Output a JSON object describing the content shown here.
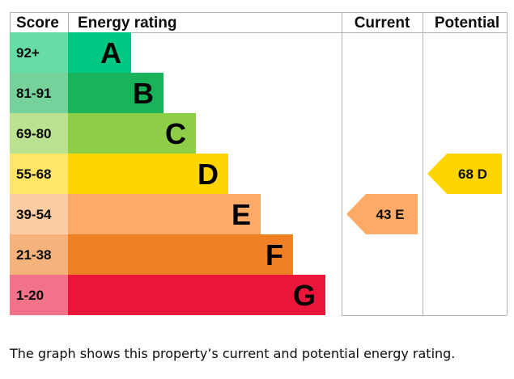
{
  "chart_data": {
    "type": "bar",
    "headers": {
      "score": "Score",
      "rating": "Energy rating",
      "current": "Current",
      "potential": "Potential"
    },
    "bands": [
      {
        "range": "92+",
        "letter": "A",
        "min": 92,
        "max": 100,
        "color": "#00c781",
        "score_bg": "#66dda7"
      },
      {
        "range": "81-91",
        "letter": "B",
        "min": 81,
        "max": 91,
        "color": "#19b459",
        "score_bg": "#75d29b"
      },
      {
        "range": "69-80",
        "letter": "C",
        "min": 69,
        "max": 80,
        "color": "#8dce46",
        "score_bg": "#bbe290"
      },
      {
        "range": "55-68",
        "letter": "D",
        "min": 55,
        "max": 68,
        "color": "#ffd500",
        "score_bg": "#ffe666"
      },
      {
        "range": "39-54",
        "letter": "E",
        "min": 39,
        "max": 54,
        "color": "#fcaa65",
        "score_bg": "#fdcca3"
      },
      {
        "range": "21-38",
        "letter": "F",
        "min": 21,
        "max": 38,
        "color": "#ef8023",
        "score_bg": "#f5b37b"
      },
      {
        "range": "1-20",
        "letter": "G",
        "min": 1,
        "max": 20,
        "color": "#e9153b",
        "score_bg": "#f27389"
      }
    ],
    "current": {
      "value": 43,
      "letter": "E",
      "label": "43 E",
      "color": "#fcaa65"
    },
    "potential": {
      "value": 68,
      "letter": "D",
      "label": "68 D",
      "color": "#ffd500"
    }
  },
  "caption": "The graph shows this property’s current and potential energy rating."
}
